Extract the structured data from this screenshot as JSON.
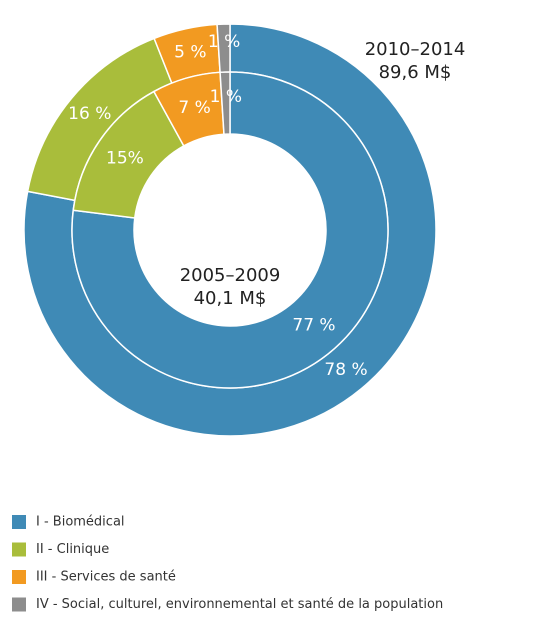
{
  "chart_data": {
    "type": "donut",
    "categories": [
      "I - Biomédical",
      "II - Clinique",
      "III - Services de santé",
      "IV - Social, culturel, environnemental et santé de la population"
    ],
    "colors": [
      "#3f8ab6",
      "#a9bd3b",
      "#f29a21",
      "#8d8d8d"
    ],
    "series": [
      {
        "name": "2010–2014",
        "total_label": "89,6 M$",
        "values": [
          78,
          16,
          5,
          1
        ],
        "value_labels": [
          "78 %",
          "16 %",
          "5 %",
          "1 %"
        ]
      },
      {
        "name": "2005–2009",
        "total_label": "40,1 M$",
        "values": [
          77,
          15,
          7,
          1
        ],
        "value_labels": [
          "77 %",
          "15%",
          "7 %",
          "1 %"
        ]
      }
    ]
  }
}
